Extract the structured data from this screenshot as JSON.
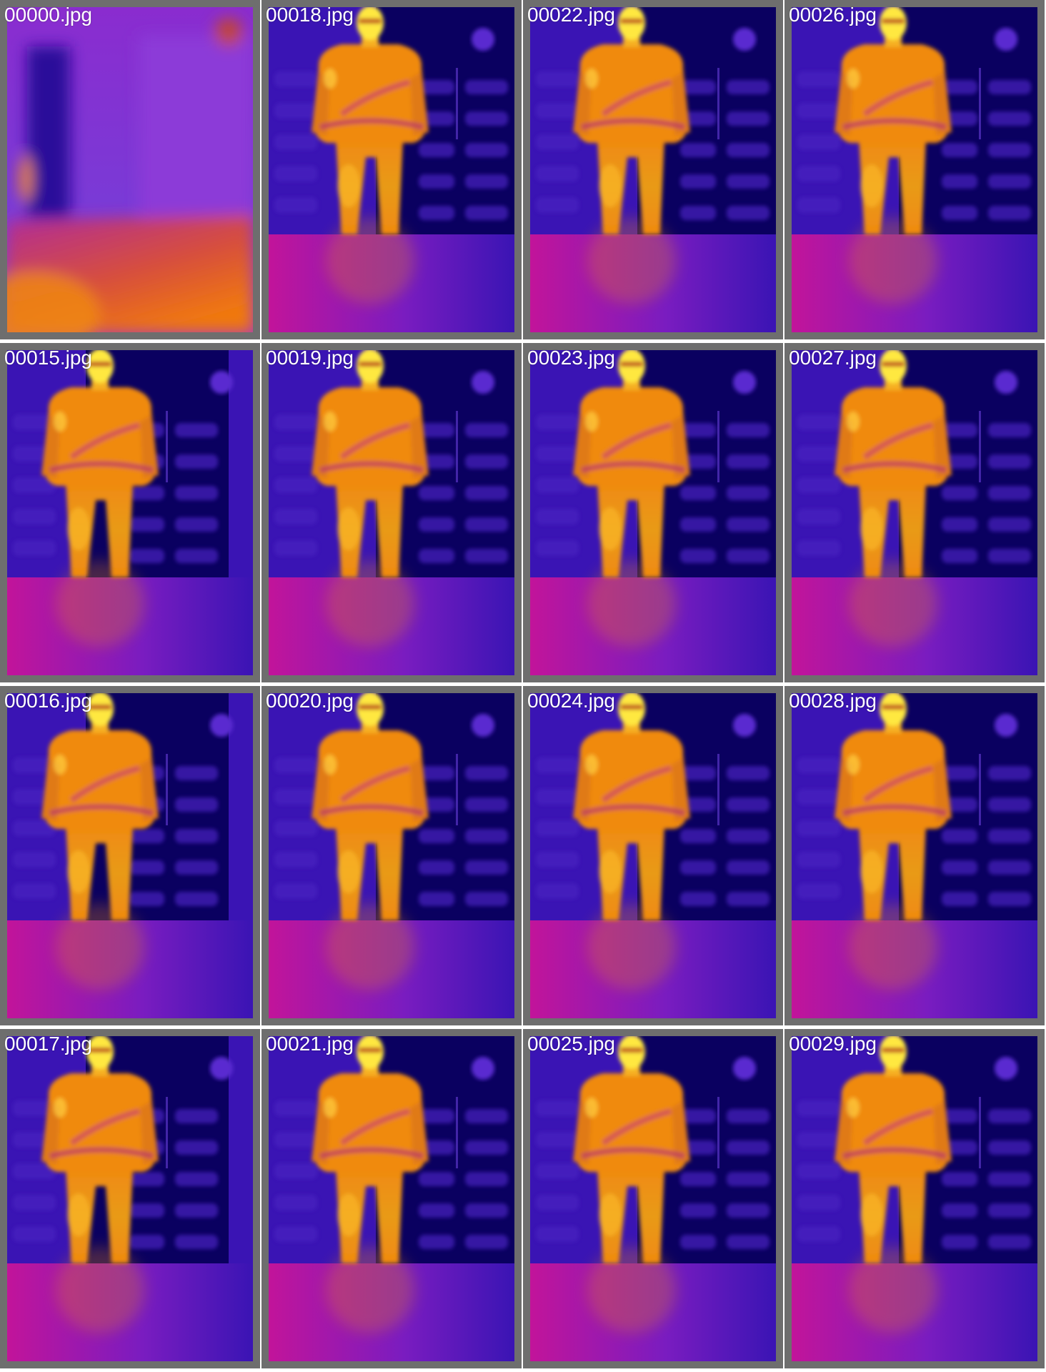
{
  "columns": 4,
  "rows": 4,
  "palette": {
    "cold": "#0a0060",
    "cool": "#3a14b4",
    "mid": "#7a1cc0",
    "warm": "#c2149a",
    "hot": "#f08a10",
    "hottest": "#ffe840",
    "frame": "#6e6e6e",
    "label_color": "#ffffff"
  },
  "tiles": [
    {
      "name": "00000.jpg",
      "scene": "wall"
    },
    {
      "name": "00018.jpg",
      "scene": "person-center"
    },
    {
      "name": "00022.jpg",
      "scene": "person-center"
    },
    {
      "name": "00026.jpg",
      "scene": "person-center"
    },
    {
      "name": "00015.jpg",
      "scene": "person-left"
    },
    {
      "name": "00019.jpg",
      "scene": "person-center"
    },
    {
      "name": "00023.jpg",
      "scene": "person-center"
    },
    {
      "name": "00027.jpg",
      "scene": "person-center"
    },
    {
      "name": "00016.jpg",
      "scene": "person-left"
    },
    {
      "name": "00020.jpg",
      "scene": "person-center"
    },
    {
      "name": "00024.jpg",
      "scene": "person-center"
    },
    {
      "name": "00028.jpg",
      "scene": "person-center"
    },
    {
      "name": "00017.jpg",
      "scene": "person-left"
    },
    {
      "name": "00021.jpg",
      "scene": "person-center"
    },
    {
      "name": "00025.jpg",
      "scene": "person-center"
    },
    {
      "name": "00029.jpg",
      "scene": "person-center"
    }
  ]
}
